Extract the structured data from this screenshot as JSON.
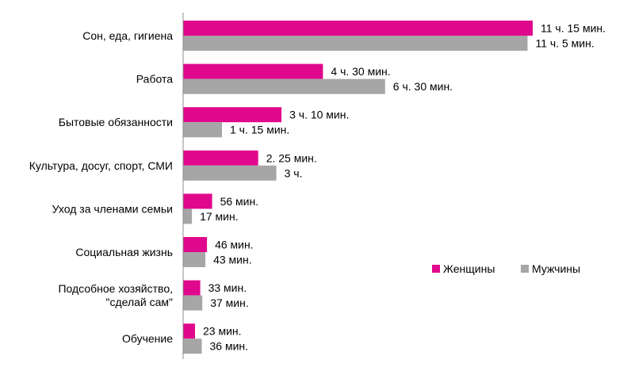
{
  "chart_data": {
    "type": "bar",
    "orientation": "horizontal",
    "categories": [
      [
        "Сон, еда, гигиена"
      ],
      [
        "Работа"
      ],
      [
        "Бытовые обязанности"
      ],
      [
        "Культура, досуг, спорт, СМИ"
      ],
      [
        "Уход за членами семьи"
      ],
      [
        "Социальная жизнь"
      ],
      [
        "Подсобное хозяйство,",
        "\"сделай сам\""
      ],
      [
        "Обучение"
      ]
    ],
    "series": [
      {
        "name": "Женщины",
        "color": "#e0088c",
        "values_minutes": [
          675,
          270,
          190,
          145,
          56,
          46,
          33,
          23
        ],
        "labels": [
          "11 ч. 15 мин.",
          "4 ч. 30 мин.",
          "3 ч. 10 мин.",
          "2. 25 мин.",
          "56 мин.",
          "46 мин.",
          "33 мин.",
          "23 мин."
        ]
      },
      {
        "name": "Мужчины",
        "color": "#a6a6a6",
        "values_minutes": [
          665,
          390,
          75,
          180,
          17,
          43,
          37,
          36
        ],
        "labels": [
          "11 ч. 5 мин.",
          "6 ч. 30 мин.",
          "1 ч. 15 мин.",
          "3 ч.",
          "17 мин.",
          "43 мин.",
          "37 мин.",
          "36 мин."
        ]
      }
    ],
    "xlim": [
      0,
      700
    ],
    "grid": false,
    "legend_position": "right"
  }
}
